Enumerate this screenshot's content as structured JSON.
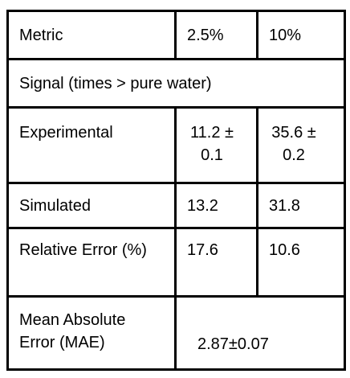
{
  "table": {
    "header": [
      "Metric",
      "2.5%",
      "10%"
    ],
    "section": "Signal (times > pure water)",
    "rows": [
      [
        "Experimental",
        "11.2 ± 0.1",
        "35.6 ± 0.2"
      ],
      [
        "Simulated",
        "13.2",
        "31.8"
      ],
      [
        "Relative Error (%)",
        "17.6",
        "10.6"
      ]
    ],
    "summary": {
      "label": "Mean Absolute Error (MAE)",
      "value": "2.87±0.07"
    }
  }
}
